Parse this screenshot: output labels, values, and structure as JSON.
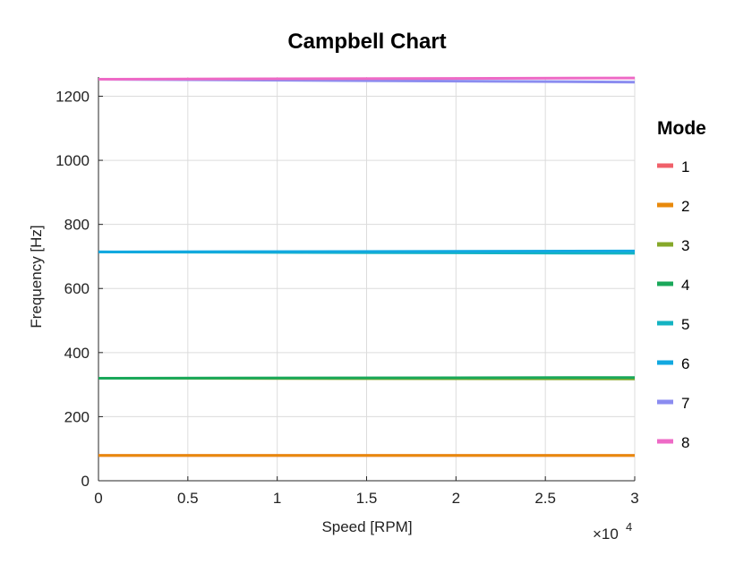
{
  "chart_data": {
    "type": "line",
    "title": "Campbell Chart",
    "xlabel": "Speed [RPM]",
    "ylabel": "Frequency [Hz]",
    "x_exponent_label": "×10",
    "x_exponent_power": "4",
    "xlim": [
      0,
      30000
    ],
    "ylim": [
      0,
      1260
    ],
    "x_ticks": [
      0,
      5000,
      10000,
      15000,
      20000,
      25000,
      30000
    ],
    "x_tick_labels": [
      "0",
      "0.5",
      "1",
      "1.5",
      "2",
      "2.5",
      "3"
    ],
    "y_ticks": [
      0,
      200,
      400,
      600,
      800,
      1000,
      1200
    ],
    "y_tick_labels": [
      "0",
      "200",
      "400",
      "600",
      "800",
      "1000",
      "1200"
    ],
    "grid": true,
    "legend_title": "Mode",
    "legend_position": "right",
    "x": [
      0,
      30000
    ],
    "series": [
      {
        "name": "1",
        "color": "#f0606a",
        "values": [
          79,
          79
        ]
      },
      {
        "name": "2",
        "color": "#e8890c",
        "values": [
          79,
          79
        ]
      },
      {
        "name": "3",
        "color": "#86a82a",
        "values": [
          320,
          318
        ]
      },
      {
        "name": "4",
        "color": "#1aa85a",
        "values": [
          320,
          322
        ]
      },
      {
        "name": "5",
        "color": "#14b3c2",
        "values": [
          714,
          710
        ]
      },
      {
        "name": "6",
        "color": "#12a8e0",
        "values": [
          714,
          717
        ]
      },
      {
        "name": "7",
        "color": "#8b8cf0",
        "values": [
          1253,
          1244
        ]
      },
      {
        "name": "8",
        "color": "#ee6ac6",
        "values": [
          1253,
          1257
        ]
      }
    ]
  }
}
